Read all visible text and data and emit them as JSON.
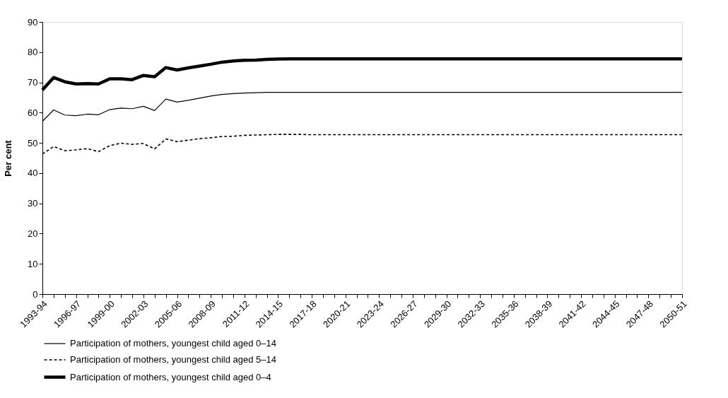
{
  "chart_data": {
    "type": "line",
    "ylabel": "Per cent",
    "ylim": [
      0,
      90
    ],
    "yticks": [
      0,
      10,
      20,
      30,
      40,
      50,
      60,
      70,
      80,
      90
    ],
    "legend": "bottom",
    "categories": [
      "1993-94",
      null,
      null,
      "1996-97",
      null,
      null,
      "1999-00",
      null,
      null,
      "2002-03",
      null,
      null,
      "2005-06",
      null,
      null,
      "2008-09",
      null,
      null,
      "2011-12",
      null,
      null,
      "2014-15",
      null,
      null,
      "2017-18",
      null,
      null,
      "2020-21",
      null,
      null,
      "2023-24",
      null,
      null,
      "2026-27",
      null,
      null,
      "2029-30",
      null,
      null,
      "2032-33",
      null,
      null,
      "2035-36",
      null,
      null,
      "2038-39",
      null,
      null,
      "2041-42",
      null,
      null,
      "2044-45",
      null,
      null,
      "2047-48",
      null,
      null,
      "2050-51"
    ],
    "series": [
      {
        "name": "Participation of mothers, youngest child aged 0–14",
        "color": "#000000",
        "line_style": "solid",
        "values": [
          57.1,
          60.9,
          59.2,
          59.0,
          59.5,
          59.3,
          61.0,
          61.5,
          61.3,
          62.1,
          60.7,
          64.5,
          63.5,
          64.1,
          64.8,
          65.5,
          66.0,
          66.3,
          66.5,
          66.6,
          66.7,
          66.7,
          66.7,
          66.7,
          66.7,
          66.7,
          66.7,
          66.7,
          66.7,
          66.7,
          66.7,
          66.7,
          66.7,
          66.7,
          66.7,
          66.7,
          66.7,
          66.7,
          66.7,
          66.7,
          66.7,
          66.7,
          66.7,
          66.7,
          66.7,
          66.7,
          66.7,
          66.7,
          66.7,
          66.7,
          66.7,
          66.7,
          66.7,
          66.7,
          66.7,
          66.7,
          66.7,
          66.7
        ]
      },
      {
        "name": "Participation of mothers, youngest child aged 5–14",
        "color": "#000000",
        "line_style": "dashed",
        "values": [
          46.3,
          48.8,
          47.4,
          47.7,
          48.1,
          47.1,
          49.1,
          49.9,
          49.5,
          49.8,
          48.0,
          51.3,
          50.4,
          50.9,
          51.4,
          51.7,
          52.1,
          52.2,
          52.5,
          52.6,
          52.7,
          52.8,
          52.8,
          52.8,
          52.7,
          52.7,
          52.7,
          52.7,
          52.7,
          52.7,
          52.7,
          52.7,
          52.7,
          52.7,
          52.7,
          52.7,
          52.7,
          52.7,
          52.7,
          52.7,
          52.7,
          52.7,
          52.7,
          52.7,
          52.7,
          52.7,
          52.7,
          52.7,
          52.7,
          52.7,
          52.7,
          52.7,
          52.7,
          52.7,
          52.7,
          52.7,
          52.7,
          52.7
        ]
      },
      {
        "name": "Participation of mothers, youngest child aged 0–4",
        "color": "#000000",
        "line_style": "solid",
        "values": [
          67.5,
          71.6,
          70.2,
          69.5,
          69.6,
          69.5,
          71.2,
          71.2,
          70.9,
          72.3,
          71.9,
          74.9,
          74.1,
          74.8,
          75.4,
          76.0,
          76.7,
          77.1,
          77.3,
          77.4,
          77.6,
          77.7,
          77.8,
          77.8,
          77.8,
          77.8,
          77.8,
          77.8,
          77.8,
          77.8,
          77.8,
          77.8,
          77.8,
          77.8,
          77.8,
          77.8,
          77.8,
          77.8,
          77.8,
          77.8,
          77.8,
          77.8,
          77.8,
          77.8,
          77.8,
          77.8,
          77.8,
          77.8,
          77.8,
          77.8,
          77.8,
          77.8,
          77.8,
          77.8,
          77.8,
          77.8,
          77.8,
          77.8
        ]
      }
    ]
  }
}
